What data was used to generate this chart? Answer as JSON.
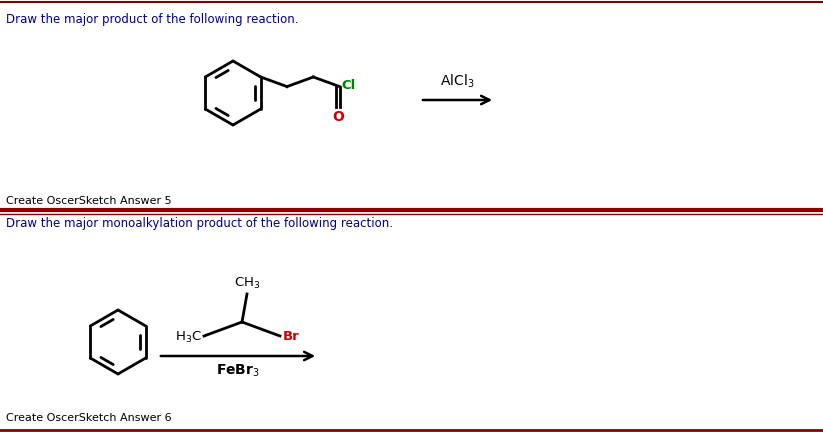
{
  "bg_color": "#ffffff",
  "border_color": "#8B0000",
  "text_color": "#000000",
  "blue_text_color": "#00008B",
  "green_color": "#008000",
  "red_color": "#cc0000",
  "question1": "Draw the major product of the following reaction.",
  "question2": "Draw the major monoalkylation product of the following reaction.",
  "answer1": "Create OscerSketch Answer 5",
  "answer2": "Create OscerSketch Answer 6",
  "fig_width": 8.23,
  "fig_height": 4.32,
  "dpi": 100
}
